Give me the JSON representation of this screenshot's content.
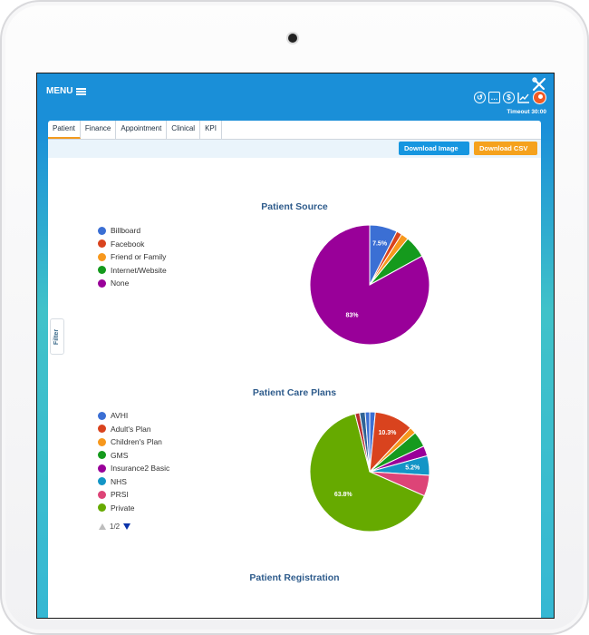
{
  "header": {
    "menu_label": "MENU",
    "timeout_label": "Timeout 30:00"
  },
  "icons": [
    "tools-icon",
    "history-icon",
    "message-icon",
    "dollar-icon",
    "trend-chart-icon",
    "user-avatar-icon"
  ],
  "tabs": [
    {
      "label": "Patient",
      "active": true
    },
    {
      "label": "Finance"
    },
    {
      "label": "Appointment"
    },
    {
      "label": "Clinical"
    },
    {
      "label": "KPI"
    }
  ],
  "actions": {
    "download_image": "Download Image",
    "download_csv": "Download CSV"
  },
  "filter_label": "Filter",
  "chart_data": [
    {
      "type": "pie",
      "title": "Patient Source",
      "slices": [
        {
          "name": "Billboard",
          "value": 7.5,
          "color": "#3b6fd4",
          "label": "7.5%"
        },
        {
          "name": "Facebook",
          "value": 1.5,
          "color": "#d9431e",
          "label": ""
        },
        {
          "name": "Friend or Family",
          "value": 2.0,
          "color": "#f7981d",
          "label": ""
        },
        {
          "name": "Internet/Website",
          "value": 6.0,
          "color": "#159a1d",
          "label": ""
        },
        {
          "name": "None",
          "value": 83.0,
          "color": "#990099",
          "label": "83%"
        }
      ]
    },
    {
      "type": "pie",
      "title": "Patient Care Plans",
      "slices": [
        {
          "name": "AVHI",
          "value": 1.5,
          "color": "#3b6fd4",
          "label": ""
        },
        {
          "name": "Adult's Plan",
          "value": 10.3,
          "color": "#d9431e",
          "label": "10.3%"
        },
        {
          "name": "Children's Plan",
          "value": 1.8,
          "color": "#f7981d",
          "label": ""
        },
        {
          "name": "GMS",
          "value": 4.2,
          "color": "#159a1d",
          "label": ""
        },
        {
          "name": "Insurance2 Basic",
          "value": 2.7,
          "color": "#990099",
          "label": ""
        },
        {
          "name": "NHS",
          "value": 5.2,
          "color": "#1395c6",
          "label": "5.2%"
        },
        {
          "name": "PRSI",
          "value": 5.6,
          "color": "#dd4477",
          "label": ""
        },
        {
          "name": "Private",
          "value": 63.8,
          "color": "#66aa00",
          "label": "63.8%"
        },
        {
          "name": "",
          "value": 1.2,
          "color": "#b82e2e",
          "label": ""
        },
        {
          "name": "",
          "value": 1.5,
          "color": "#316395",
          "label": ""
        },
        {
          "name": "",
          "value": 1.2,
          "color": "#3b6fd4",
          "label": ""
        }
      ],
      "pager": "1/2"
    },
    {
      "type": "pie",
      "title": "Patient Registration",
      "slices": []
    }
  ]
}
